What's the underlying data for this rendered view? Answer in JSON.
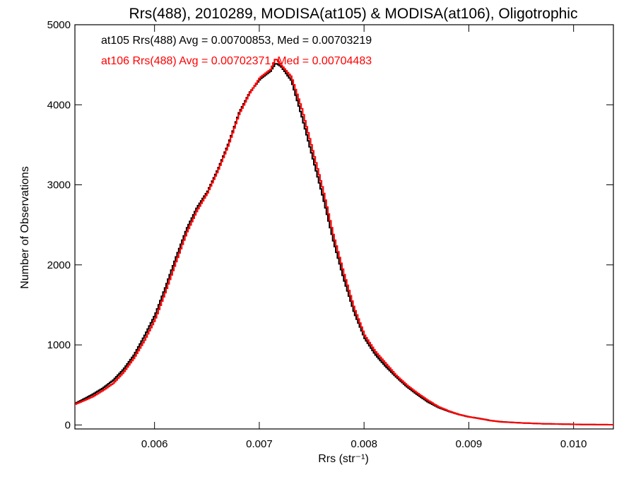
{
  "chart_data": {
    "type": "line",
    "title": "Rrs(488), 2010289, MODISA(at105) & MODISA(at106), Oligotrophic",
    "xlabel": "Rrs (str⁻¹)",
    "ylabel": "Number of Observations",
    "xlim": [
      0.00524,
      0.01038
    ],
    "ylim": [
      -50,
      5000
    ],
    "x_ticks": [
      0.006,
      0.007,
      0.008,
      0.009,
      0.01
    ],
    "x_tick_labels": [
      "0.006",
      "0.007",
      "0.008",
      "0.009",
      "0.010"
    ],
    "y_ticks": [
      0,
      1000,
      2000,
      3000,
      4000,
      5000
    ],
    "y_tick_labels": [
      "0",
      "1000",
      "2000",
      "3000",
      "4000",
      "5000"
    ],
    "grid": false,
    "legend_position": "top-left",
    "step_style": "histogram",
    "series": [
      {
        "name": "at105",
        "color": "#000000",
        "legend_text": "at105 Rrs(488) Avg = 0.00700853, Med = 0.00703219",
        "x": [
          0.00524,
          0.0054,
          0.0055,
          0.0056,
          0.0057,
          0.0058,
          0.0059,
          0.006,
          0.0061,
          0.0062,
          0.0063,
          0.0064,
          0.0065,
          0.0066,
          0.0067,
          0.0068,
          0.0069,
          0.007,
          0.0071,
          0.00715,
          0.0072,
          0.0073,
          0.0074,
          0.0075,
          0.0076,
          0.0077,
          0.0078,
          0.0079,
          0.008,
          0.0081,
          0.0082,
          0.0083,
          0.0084,
          0.0085,
          0.0086,
          0.0087,
          0.0088,
          0.0089,
          0.009,
          0.0091,
          0.0092,
          0.0093,
          0.0095,
          0.0097,
          0.0099,
          0.0101,
          0.01038
        ],
        "y": [
          270,
          380,
          460,
          560,
          700,
          880,
          1120,
          1380,
          1730,
          2100,
          2450,
          2720,
          2920,
          3200,
          3520,
          3900,
          4150,
          4320,
          4420,
          4520,
          4480,
          4300,
          3850,
          3350,
          2850,
          2300,
          1820,
          1400,
          1080,
          880,
          730,
          600,
          480,
          380,
          290,
          220,
          170,
          130,
          100,
          80,
          55,
          40,
          25,
          15,
          10,
          5,
          3
        ]
      },
      {
        "name": "at106",
        "color": "#ff0000",
        "legend_text": "at106 Rrs(488) Avg = 0.00702371, Med = 0.00704483",
        "x": [
          0.00524,
          0.0054,
          0.0055,
          0.0056,
          0.0057,
          0.0058,
          0.0059,
          0.006,
          0.0061,
          0.0062,
          0.0063,
          0.0064,
          0.0065,
          0.0066,
          0.0067,
          0.0068,
          0.0069,
          0.007,
          0.0071,
          0.00715,
          0.0072,
          0.0073,
          0.0074,
          0.0075,
          0.0076,
          0.0077,
          0.0078,
          0.0079,
          0.008,
          0.0081,
          0.0082,
          0.0083,
          0.0084,
          0.0085,
          0.0086,
          0.0087,
          0.0088,
          0.0089,
          0.009,
          0.0091,
          0.0092,
          0.0093,
          0.0095,
          0.0097,
          0.0099,
          0.0101,
          0.01038
        ],
        "y": [
          260,
          350,
          430,
          520,
          660,
          840,
          1060,
          1320,
          1670,
          2040,
          2400,
          2680,
          2900,
          3180,
          3500,
          3880,
          4140,
          4340,
          4440,
          4580,
          4500,
          4350,
          3950,
          3450,
          2950,
          2380,
          1900,
          1460,
          1120,
          920,
          770,
          620,
          500,
          400,
          310,
          230,
          175,
          130,
          100,
          78,
          55,
          38,
          25,
          15,
          10,
          5,
          3
        ]
      }
    ]
  }
}
